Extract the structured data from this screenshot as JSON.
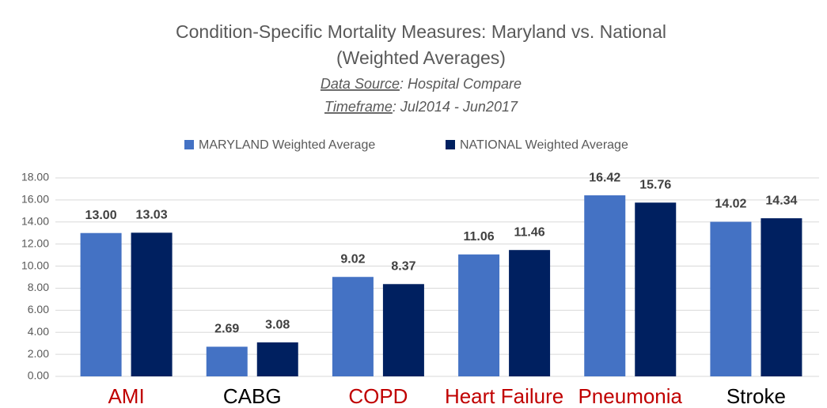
{
  "chart_data": {
    "type": "bar",
    "title": [
      "Condition-Specific Mortality Measures: Maryland vs. National",
      "(Weighted Averages)"
    ],
    "subtitle": [
      [
        "Data Source",
        ": Hospital Compare"
      ],
      [
        "Timeframe",
        ": Jul2014 - Jun2017"
      ]
    ],
    "categories": [
      "AMI",
      "CABG",
      "COPD",
      "Heart Failure",
      "Pneumonia",
      "Stroke"
    ],
    "category_colors": [
      "#c00000",
      "#000000",
      "#c00000",
      "#c00000",
      "#c00000",
      "#000000"
    ],
    "series": [
      {
        "name": "MARYLAND Weighted Average",
        "color": "#4472c4",
        "values": [
          13.0,
          2.69,
          9.02,
          11.06,
          16.42,
          14.02
        ],
        "value_labels": [
          "13.00",
          "2.69",
          "9.02",
          "11.06",
          "16.42",
          "14.02"
        ]
      },
      {
        "name": "NATIONAL Weighted Average",
        "color": "#002060",
        "values": [
          13.03,
          3.08,
          8.37,
          11.46,
          15.76,
          14.34
        ],
        "value_labels": [
          "13.03",
          "3.08",
          "8.37",
          "11.46",
          "15.76",
          "14.34"
        ]
      }
    ],
    "ylim": [
      0,
      18
    ],
    "yticks": [
      {
        "value": 0,
        "label": "0.00"
      },
      {
        "value": 2,
        "label": "2.00"
      },
      {
        "value": 4,
        "label": "4.00"
      },
      {
        "value": 6,
        "label": "6.00"
      },
      {
        "value": 8,
        "label": "8.00"
      },
      {
        "value": 10,
        "label": "10.00"
      },
      {
        "value": 12,
        "label": "12.00"
      },
      {
        "value": 14,
        "label": "14.00"
      },
      {
        "value": 16,
        "label": "16.00"
      },
      {
        "value": 18,
        "label": "18.00"
      }
    ],
    "grid": true,
    "legend": "top"
  }
}
